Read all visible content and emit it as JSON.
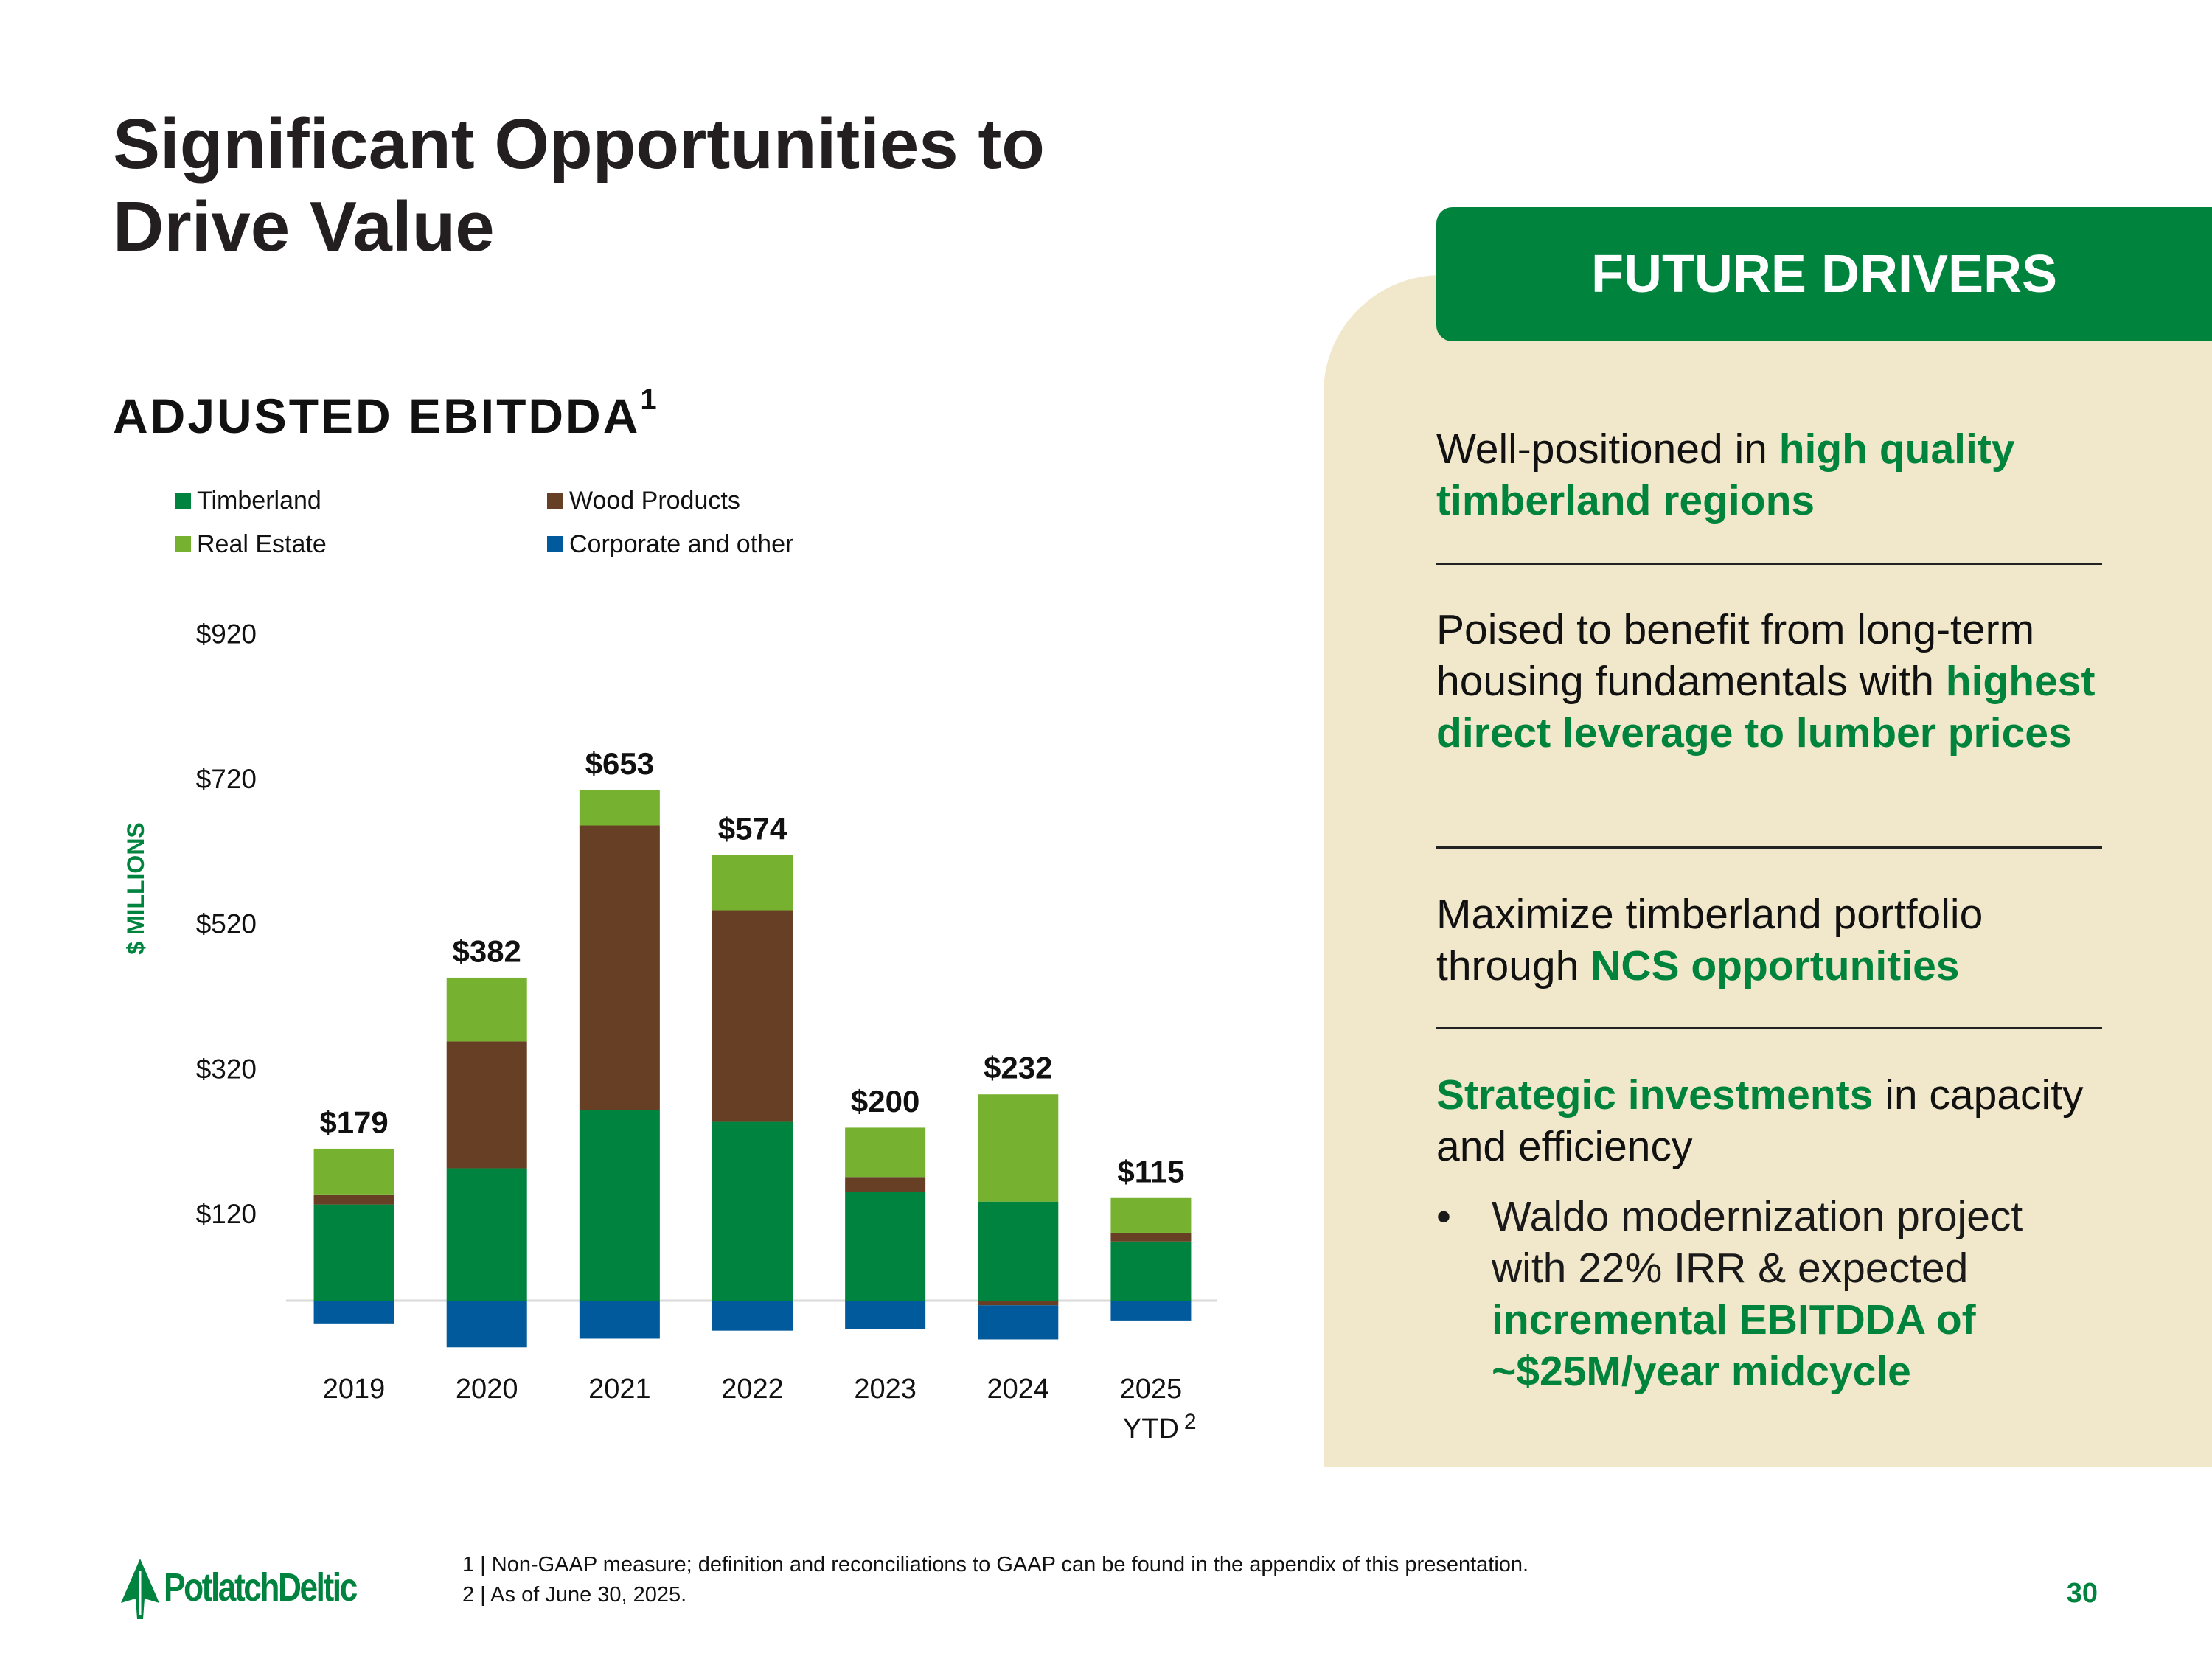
{
  "page": {
    "title": "Significant Opportunities to Drive Value",
    "panel": {
      "header": "FUTURE DRIVERS",
      "items": [
        {
          "parts": [
            {
              "text": "Well-positioned in "
            },
            {
              "text": "high quality timberland regions",
              "green": true
            }
          ]
        },
        {
          "parts": [
            {
              "text": "Poised to benefit from long-term housing fundamentals with "
            },
            {
              "text": "highest direct leverage to lumber prices",
              "green": true
            }
          ]
        },
        {
          "parts": [
            {
              "text": "Maximize timberland portfolio through "
            },
            {
              "text": "NCS opportunities",
              "green": true
            }
          ]
        },
        {
          "parts": [
            {
              "text": "Strategic investments",
              "green": true
            },
            {
              "text": " in capacity and efficiency"
            }
          ],
          "bullet": [
            {
              "text": "Waldo modernization project with 22% IRR & expected "
            },
            {
              "text": "incremental EBITDDA of ~$25M/year midcycle",
              "green": true
            }
          ]
        }
      ]
    },
    "footnotes": [
      "1 | Non-GAAP measure; definition and reconciliations to GAAP can be found in the appendix of this presentation.",
      "2 | As of June 30, 2025."
    ],
    "logo": "PotlatchDeltic",
    "page_number": "30"
  },
  "chart_data": {
    "type": "stacked_bar",
    "title": "ADJUSTED EBITDDA",
    "title_note": "1",
    "y_label": "$ MILLIONS",
    "categories": [
      "2019",
      "2020",
      "2021",
      "2022",
      "2023",
      "2024",
      "2025 YTD"
    ],
    "category_note": "2",
    "series": [
      {
        "name": "Timberland",
        "color": "#00833e",
        "values": [
          133,
          183,
          263,
          247,
          150,
          137,
          82
        ]
      },
      {
        "name": "Wood Products",
        "color": "#673f25",
        "values": [
          13,
          175,
          393,
          292,
          21,
          -6,
          12
        ]
      },
      {
        "name": "Real Estate",
        "color": "#76b22f",
        "values": [
          64,
          88,
          49,
          76,
          68,
          148,
          48
        ]
      },
      {
        "name": "Corporate and other",
        "color": "#005a9c",
        "values": [
          -31,
          -64,
          -52,
          -41,
          -39,
          -47,
          -27
        ]
      }
    ],
    "totals": {
      "values": [
        179,
        382,
        653,
        574,
        200,
        232,
        115
      ],
      "value_labels": [
        "$179",
        "$382",
        "$653",
        "$574",
        "$200",
        "$232",
        "$115"
      ]
    },
    "ylim": [
      -80,
      920
    ],
    "yticks": [
      {
        "value": 120,
        "label": "$120"
      },
      {
        "value": 320,
        "label": "$320"
      },
      {
        "value": 520,
        "label": "$520"
      },
      {
        "value": 720,
        "label": "$720"
      },
      {
        "value": 920,
        "label": "$920"
      }
    ],
    "grid": false
  }
}
